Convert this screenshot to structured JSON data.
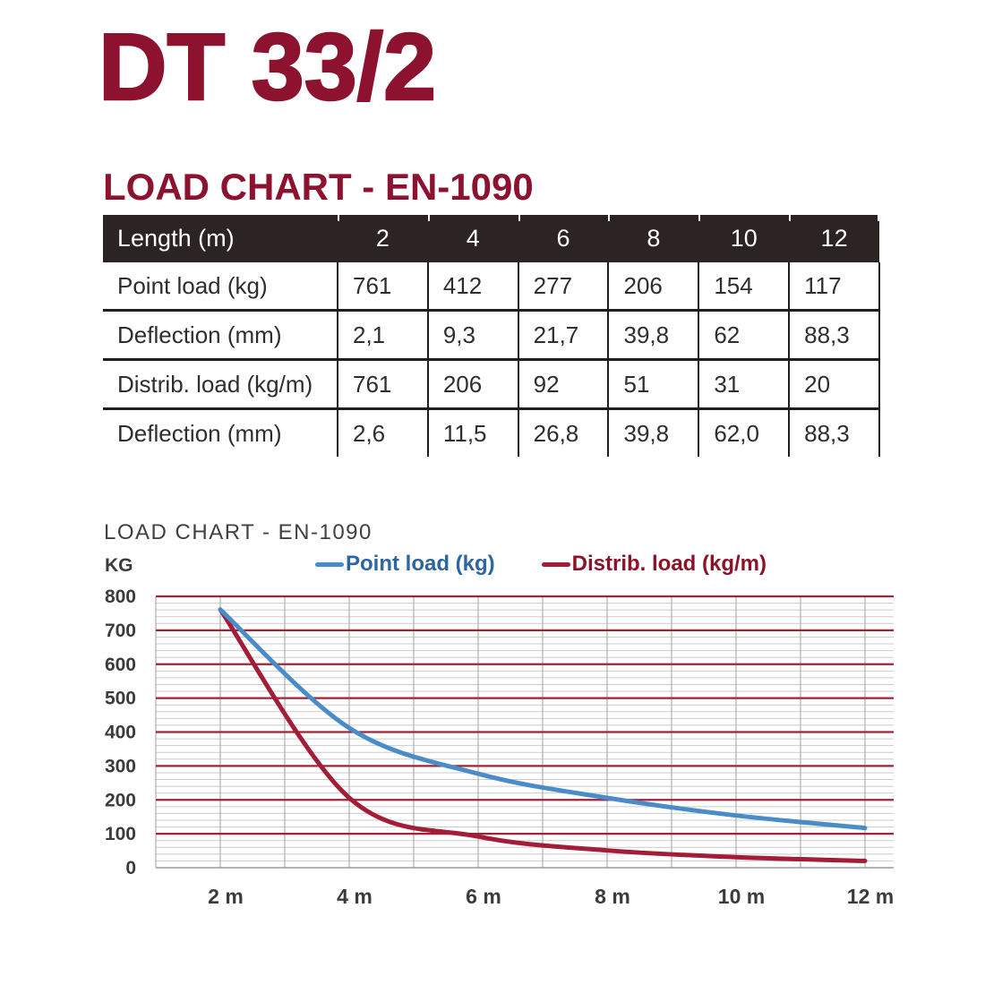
{
  "header": {
    "product_title": "DT 33/2",
    "accent_color": "#8D1230"
  },
  "table_section": {
    "title": "LOAD CHART - EN-1090",
    "table": {
      "header_label": "Length (m)",
      "header_bg": "#2B2422",
      "header_text_color": "#FFFFFF",
      "columns": [
        "2",
        "4",
        "6",
        "8",
        "10",
        "12"
      ],
      "rows": [
        {
          "label": "Point load (kg)",
          "values": [
            "761",
            "412",
            "277",
            "206",
            "154",
            "117"
          ]
        },
        {
          "label": "Deflection (mm)",
          "values": [
            "2,1",
            "9,3",
            "21,7",
            "39,8",
            "62",
            "88,3"
          ]
        },
        {
          "label": "Distrib. load (kg/m)",
          "values": [
            "761",
            "206",
            "92",
            "51",
            "31",
            "20"
          ]
        },
        {
          "label": "Deflection (mm)",
          "values": [
            "2,6",
            "11,5",
            "26,8",
            "39,8",
            "62,0",
            "88,3"
          ]
        }
      ]
    }
  },
  "chart_section": {
    "title": "LOAD CHART - EN-1090",
    "y_axis_unit": "KG",
    "legend": [
      {
        "label": "Point load (kg)",
        "dash_color": "#4A8CC7",
        "text_color": "#2B66A3"
      },
      {
        "label": "Distrib. load (kg/m)",
        "dash_color": "#A31C38",
        "text_color": "#8C1228"
      }
    ]
  },
  "chart_data": {
    "type": "line",
    "title": "LOAD CHART - EN-1090",
    "ylabel": "KG",
    "x": [
      2,
      4,
      6,
      8,
      10,
      12
    ],
    "x_tick_labels": [
      "2 m",
      "4 m",
      "6 m",
      "8 m",
      "10 m",
      "12 m"
    ],
    "xlim_m": [
      1,
      12.4
    ],
    "ylim": [
      0,
      800
    ],
    "y_ticks": [
      0,
      100,
      200,
      300,
      400,
      500,
      600,
      700,
      800
    ],
    "y_tick_labels": [
      "0",
      "100",
      "200",
      "300",
      "400",
      "500",
      "600",
      "700",
      "800"
    ],
    "y_minor_step": 20,
    "x_gridline_step_m": 1,
    "grid": true,
    "legend_position": "top",
    "series": [
      {
        "name": "Point load (kg)",
        "color": "#4A8CC7",
        "values": [
          761,
          412,
          277,
          206,
          154,
          117
        ]
      },
      {
        "name": "Distrib. load (kg/m)",
        "color": "#A31C38",
        "values": [
          761,
          206,
          92,
          51,
          31,
          20
        ]
      }
    ],
    "style": {
      "major_gridline_color": "#9E2438",
      "minor_gridline_color": "#CBCBCB",
      "vertical_gridline_color": "#AFAFAF",
      "axis_line_color": "#9C9C9C",
      "tick_label_color": "#3B3B3B"
    }
  }
}
